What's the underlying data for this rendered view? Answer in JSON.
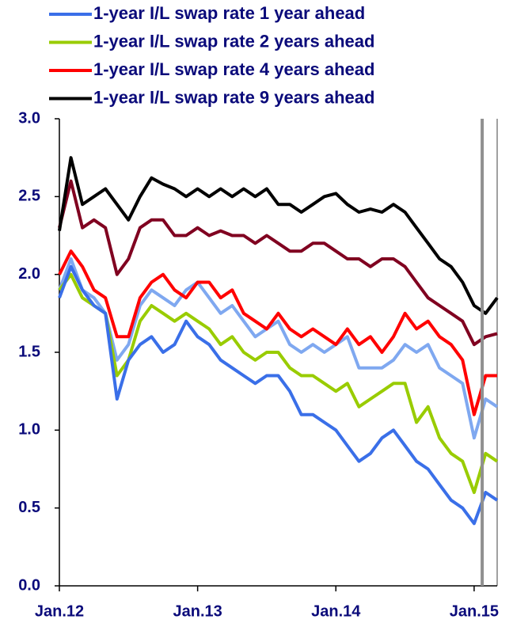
{
  "chart_data": {
    "type": "line",
    "x": [
      0,
      1,
      2,
      3,
      4,
      5,
      6,
      7,
      8,
      9,
      10,
      11,
      12,
      13,
      14,
      15,
      16,
      17,
      18,
      19,
      20,
      21,
      22,
      23,
      24,
      25,
      26,
      27,
      28,
      29,
      30,
      31,
      32,
      33,
      34,
      35,
      36,
      37,
      38
    ],
    "xlim": [
      0,
      38
    ],
    "xticks": [
      {
        "value": 0,
        "label": "Jan.12"
      },
      {
        "value": 12,
        "label": "Jan.13"
      },
      {
        "value": 24,
        "label": "Jan.14"
      },
      {
        "value": 36,
        "label": "Jan.15"
      }
    ],
    "ylim": [
      0,
      3
    ],
    "yticks": [
      {
        "value": 0,
        "label": "0.0"
      },
      {
        "value": 0.5,
        "label": "0.5"
      },
      {
        "value": 1,
        "label": "1.0"
      },
      {
        "value": 1.5,
        "label": "1.5"
      },
      {
        "value": 2,
        "label": "2.0"
      },
      {
        "value": 2.5,
        "label": "2.5"
      },
      {
        "value": 3,
        "label": "3.0"
      }
    ],
    "grid": false,
    "vline": 36.7,
    "series": [
      {
        "name": "1-year I/L swap rate 1 year ahead",
        "color": "#3a6fe8",
        "values": [
          1.85,
          2.05,
          1.9,
          1.8,
          1.75,
          1.2,
          1.45,
          1.55,
          1.6,
          1.5,
          1.55,
          1.7,
          1.6,
          1.55,
          1.45,
          1.4,
          1.35,
          1.3,
          1.35,
          1.35,
          1.25,
          1.1,
          1.1,
          1.05,
          1.0,
          0.9,
          0.8,
          0.85,
          0.95,
          1.0,
          0.9,
          0.8,
          0.75,
          0.65,
          0.55,
          0.5,
          0.4,
          0.6,
          0.55
        ]
      },
      {
        "name": "1-year I/L swap rate 2 years ahead",
        "color": "#99cc00",
        "values": [
          1.9,
          2.0,
          1.85,
          1.8,
          1.75,
          1.35,
          1.45,
          1.7,
          1.8,
          1.75,
          1.7,
          1.75,
          1.7,
          1.65,
          1.55,
          1.6,
          1.5,
          1.45,
          1.5,
          1.5,
          1.4,
          1.35,
          1.35,
          1.3,
          1.25,
          1.3,
          1.15,
          1.2,
          1.25,
          1.3,
          1.3,
          1.05,
          1.15,
          0.95,
          0.85,
          0.8,
          0.6,
          0.85,
          0.8
        ]
      },
      {
        "name": "1-year I/L swap rate 4 years ahead",
        "color": "#ff0000",
        "values": [
          2.0,
          2.15,
          2.05,
          1.9,
          1.85,
          1.6,
          1.6,
          1.85,
          1.95,
          2.0,
          1.9,
          1.85,
          1.95,
          1.95,
          1.85,
          1.9,
          1.75,
          1.7,
          1.65,
          1.75,
          1.65,
          1.6,
          1.65,
          1.6,
          1.55,
          1.65,
          1.55,
          1.6,
          1.5,
          1.6,
          1.75,
          1.65,
          1.7,
          1.6,
          1.55,
          1.45,
          1.1,
          1.35,
          1.35
        ]
      },
      {
        "name": "1-year I/L swap rate 9 years ahead",
        "color": "#000000",
        "values": [
          2.28,
          2.75,
          2.45,
          2.5,
          2.55,
          2.45,
          2.35,
          2.5,
          2.62,
          2.58,
          2.55,
          2.5,
          2.55,
          2.5,
          2.55,
          2.5,
          2.55,
          2.5,
          2.55,
          2.45,
          2.45,
          2.4,
          2.45,
          2.5,
          2.52,
          2.45,
          2.4,
          2.42,
          2.4,
          2.45,
          2.4,
          2.3,
          2.2,
          2.1,
          2.05,
          1.95,
          1.8,
          1.75,
          1.85
        ]
      },
      {
        "color": "#7fa8f0",
        "values": [
          1.9,
          2.1,
          1.9,
          1.85,
          1.75,
          1.45,
          1.55,
          1.8,
          1.9,
          1.85,
          1.8,
          1.9,
          1.95,
          1.85,
          1.75,
          1.8,
          1.7,
          1.6,
          1.65,
          1.7,
          1.55,
          1.5,
          1.55,
          1.5,
          1.55,
          1.6,
          1.4,
          1.4,
          1.4,
          1.45,
          1.55,
          1.5,
          1.55,
          1.4,
          1.35,
          1.3,
          0.95,
          1.2,
          1.15
        ]
      },
      {
        "color": "#800020",
        "values": [
          2.3,
          2.6,
          2.3,
          2.35,
          2.3,
          2.0,
          2.1,
          2.3,
          2.35,
          2.35,
          2.25,
          2.25,
          2.3,
          2.25,
          2.28,
          2.25,
          2.25,
          2.2,
          2.25,
          2.2,
          2.15,
          2.15,
          2.2,
          2.2,
          2.15,
          2.1,
          2.1,
          2.05,
          2.1,
          2.1,
          2.05,
          1.95,
          1.85,
          1.8,
          1.75,
          1.7,
          1.55,
          1.6,
          1.62
        ]
      }
    ]
  }
}
